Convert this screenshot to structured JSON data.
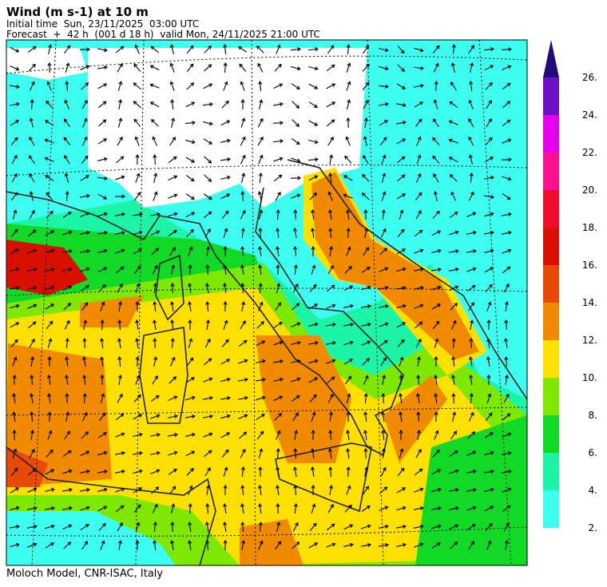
{
  "header": {
    "title": "Wind (m s-1) at 10 m",
    "initial_time": "Initial time  Sun, 23/11/2025  03:00 UTC",
    "forecast": "Forecast  +  42 h  (001 d 18 h)  valid Mon, 24/11/2025 21:00 UTC"
  },
  "colorbar": {
    "labels": [
      "2.",
      "4.",
      "6.",
      "8.",
      "10.",
      "12.",
      "14.",
      "16.",
      "18.",
      "20.",
      "22.",
      "24.",
      "26."
    ],
    "colors": [
      "#3dfff0",
      "#1cf5a8",
      "#12d826",
      "#7ee800",
      "#fde000",
      "#f08a00",
      "#e84a08",
      "#d81000",
      "#f00c2c",
      "#ff1090",
      "#e400e8",
      "#7010c4"
    ],
    "over_color": "#24087e"
  },
  "footer": "Moloch Model, CNR-ISAC, Italy"
}
